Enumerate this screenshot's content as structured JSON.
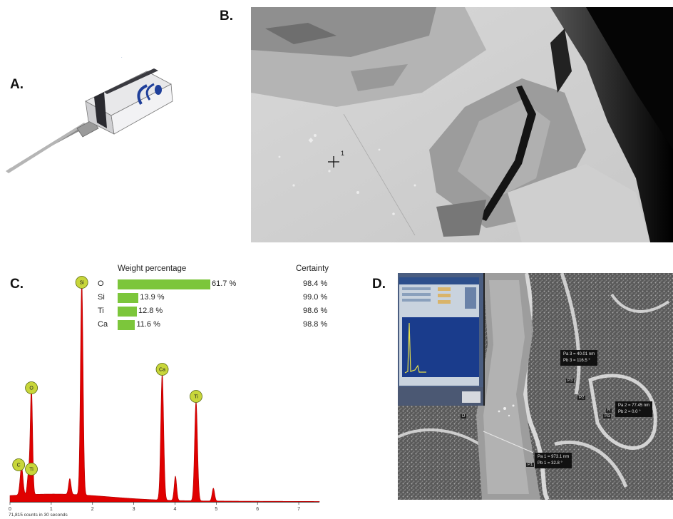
{
  "panels": {
    "a": {
      "letter": "A."
    },
    "b": {
      "letter": "B.",
      "marker_label": "1"
    },
    "c": {
      "letter": "C."
    },
    "d": {
      "letter": "D."
    }
  },
  "weight_table": {
    "header_weight": "Weight percentage",
    "header_certainty": "Certainty",
    "rows": [
      {
        "element": "O",
        "value_label": "61.7 %",
        "certainty_label": "98.4 %"
      },
      {
        "element": "Si",
        "value_label": "13.9 %",
        "certainty_label": "99.0 %"
      },
      {
        "element": "Ti",
        "value_label": "12.8 %",
        "certainty_label": "98.6 %"
      },
      {
        "element": "Ca",
        "value_label": "11.6 %",
        "certainty_label": "98.8 %"
      }
    ]
  },
  "chart_data": {
    "type": "bar",
    "categories": [
      "O",
      "Si",
      "Ti",
      "Ca"
    ],
    "values": [
      61.7,
      13.9,
      12.8,
      11.6
    ],
    "certainty": [
      98.4,
      99.0,
      98.6,
      98.8
    ],
    "title": "",
    "xlabel": "",
    "ylabel": ""
  },
  "spectrum": {
    "color": "#e00000",
    "x_ticks": [
      "0",
      "1",
      "2",
      "3",
      "4",
      "5",
      "6",
      "7"
    ],
    "footer": "71,815 counts in 30 seconds",
    "peak_labels": [
      {
        "label": "Si",
        "x": 1.74
      },
      {
        "label": "O",
        "x": 0.52
      },
      {
        "label": "Ca",
        "x": 3.69
      },
      {
        "label": "Ti",
        "x": 4.51
      },
      {
        "label": "C",
        "x": 0.28
      },
      {
        "label": "Ti",
        "x": 0.45
      }
    ]
  },
  "measurements": [
    {
      "line1": "Pa 3 = 40.01 nm",
      "line2": "Pb 3 = 116.5 °"
    },
    {
      "line1": "Pa 2 = 77.45 nm",
      "line2": "Pb 2 = 0.0 °"
    },
    {
      "line1": "Pa 1 = 973.1 nm",
      "line2": "Pb 1 = 32.8 °"
    }
  ],
  "tags": [
    "P3",
    "P2",
    "Pa",
    "P1",
    "R",
    "D"
  ],
  "colors": {
    "bar": "#7cc63b",
    "peak_marker": "#c8d63a",
    "spectrum": "#e00000"
  }
}
